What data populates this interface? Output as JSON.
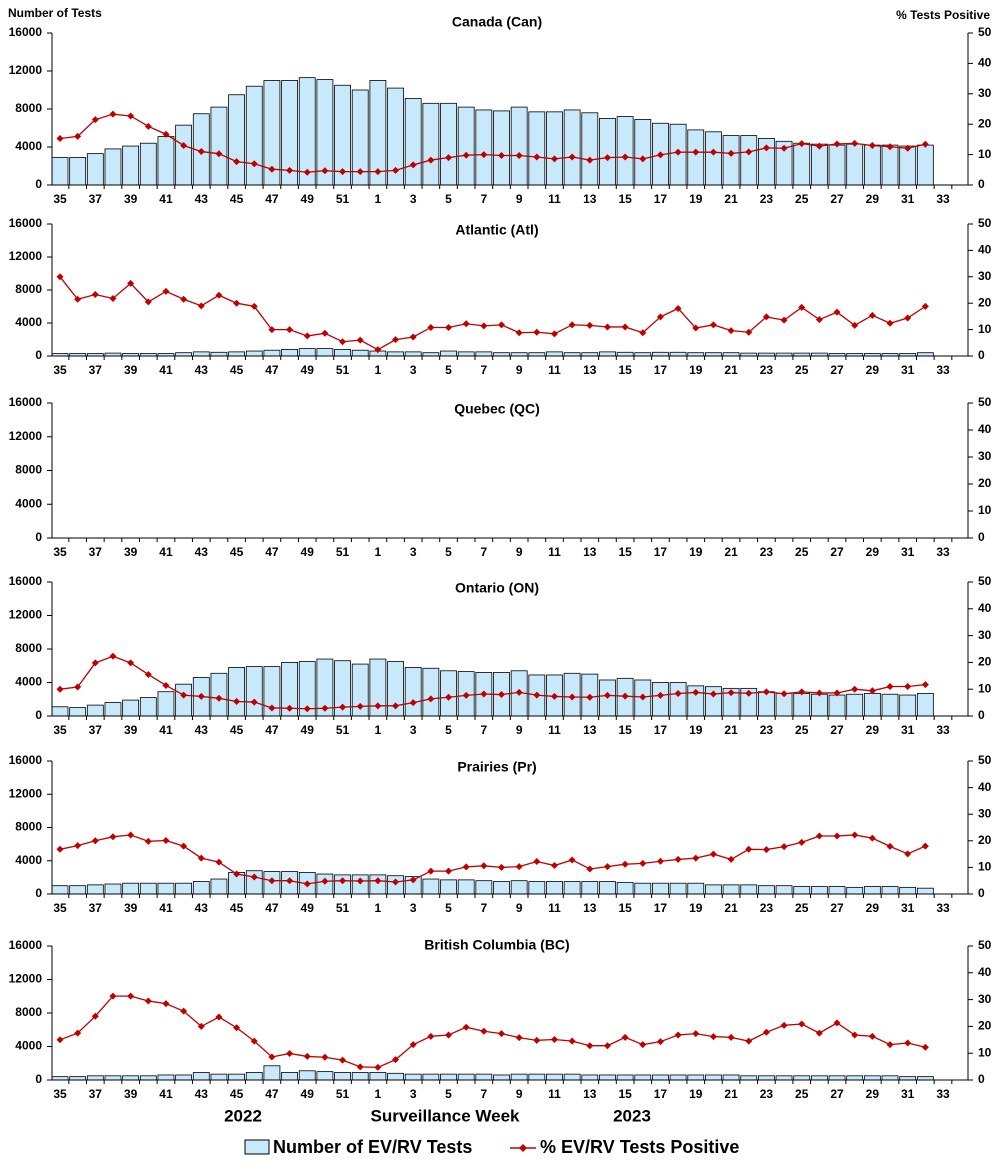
{
  "labels": {
    "y_label": "Number of Tests",
    "y2_label": "% Tests Positive",
    "x_label": "Surveillance Week",
    "years": [
      "2022",
      "2023"
    ]
  },
  "chart_data": [
    {
      "type": "bar",
      "title": "Canada (Can)",
      "categories": [
        35,
        null,
        37,
        null,
        39,
        null,
        41,
        null,
        43,
        null,
        45,
        null,
        47,
        null,
        49,
        null,
        51,
        null,
        1,
        null,
        3,
        null,
        5,
        null,
        7,
        null,
        9,
        null,
        11,
        null,
        13,
        null,
        15,
        null,
        17,
        null,
        19,
        null,
        21,
        null,
        23,
        null,
        25,
        null,
        27,
        null,
        29,
        null,
        31,
        null,
        33
      ],
      "ylim": [
        0,
        16000
      ],
      "yticks": [
        0,
        4000,
        8000,
        12000,
        16000
      ],
      "y2lim": [
        0,
        50
      ],
      "y2ticks": [
        0,
        10,
        20,
        30,
        40,
        50
      ],
      "series": [
        {
          "name": "Number of EV/RV Tests",
          "color": "#c8e9fb",
          "values": [
            2900,
            2900,
            3300,
            3800,
            4100,
            4400,
            5100,
            6300,
            7500,
            8200,
            9500,
            10400,
            11000,
            11000,
            11300,
            11100,
            10500,
            10000,
            11000,
            10200,
            9100,
            8600,
            8600,
            8200,
            7900,
            7800,
            8200,
            7700,
            7700,
            7900,
            7600,
            7000,
            7200,
            6900,
            6500,
            6400,
            5800,
            5600,
            5200,
            5200,
            4900,
            4600,
            4400,
            4300,
            4200,
            4300,
            4200,
            4200,
            4100,
            4200,
            null
          ]
        },
        {
          "name": "% EV/RV Tests Positive",
          "type": "line",
          "axis": "y2",
          "color": "#c00000",
          "values": [
            15.3,
            16,
            21.5,
            23.3,
            22.7,
            19.3,
            16.7,
            13,
            11,
            10.3,
            7.7,
            7,
            5.2,
            4.8,
            4.2,
            4.7,
            4.4,
            4.4,
            4.4,
            4.8,
            6.6,
            8.2,
            9,
            9.8,
            10,
            9.7,
            9.7,
            9.2,
            8.6,
            9.2,
            8.2,
            9,
            9.2,
            8.6,
            9.9,
            10.8,
            10.8,
            10.8,
            10.4,
            10.9,
            12.2,
            12.1,
            13.6,
            12.8,
            13.5,
            13.7,
            13,
            12.6,
            12.1,
            13.4,
            null
          ]
        }
      ]
    },
    {
      "type": "bar",
      "title": "Atlantic (Atl)",
      "categories": [
        35,
        null,
        37,
        null,
        39,
        null,
        41,
        null,
        43,
        null,
        45,
        null,
        47,
        null,
        49,
        null,
        51,
        null,
        1,
        null,
        3,
        null,
        5,
        null,
        7,
        null,
        9,
        null,
        11,
        null,
        13,
        null,
        15,
        null,
        17,
        null,
        19,
        null,
        21,
        null,
        23,
        null,
        25,
        null,
        27,
        null,
        29,
        null,
        31,
        null,
        33
      ],
      "ylim": [
        0,
        16000
      ],
      "yticks": [
        0,
        4000,
        8000,
        12000,
        16000
      ],
      "y2lim": [
        0,
        50
      ],
      "y2ticks": [
        0,
        10,
        20,
        30,
        40,
        50
      ],
      "series": [
        {
          "color": "#c8e9fb",
          "values": [
            300,
            300,
            300,
            350,
            300,
            300,
            300,
            400,
            500,
            450,
            500,
            600,
            700,
            800,
            900,
            900,
            800,
            700,
            600,
            500,
            500,
            400,
            600,
            500,
            500,
            400,
            400,
            400,
            500,
            400,
            400,
            500,
            450,
            400,
            450,
            450,
            400,
            400,
            400,
            350,
            350,
            350,
            350,
            350,
            300,
            300,
            300,
            300,
            300,
            400,
            null
          ]
        },
        {
          "type": "line",
          "axis": "y2",
          "color": "#c00000",
          "values": [
            30,
            21.5,
            23.3,
            21.8,
            27.5,
            20.5,
            24.5,
            21.5,
            19,
            23,
            20,
            18.8,
            10,
            10,
            7.6,
            8.6,
            5.4,
            6,
            2.4,
            6.2,
            7.2,
            10.8,
            10.8,
            12.2,
            11.4,
            11.8,
            8.8,
            9,
            8.4,
            11.8,
            11.6,
            11,
            11,
            8.8,
            14.8,
            18,
            10.6,
            11.8,
            9.6,
            9,
            14.8,
            13.6,
            18.4,
            13.8,
            16.6,
            11.6,
            15.4,
            12.4,
            14.4,
            18.8,
            null
          ]
        }
      ]
    },
    {
      "type": "bar",
      "title": "Quebec (QC)",
      "categories": [
        35,
        null,
        37,
        null,
        39,
        null,
        41,
        null,
        43,
        null,
        45,
        null,
        47,
        null,
        49,
        null,
        51,
        null,
        1,
        null,
        3,
        null,
        5,
        null,
        7,
        null,
        9,
        null,
        11,
        null,
        13,
        null,
        15,
        null,
        17,
        null,
        19,
        null,
        21,
        null,
        23,
        null,
        25,
        null,
        27,
        null,
        29,
        null,
        31,
        null,
        33
      ],
      "ylim": [
        0,
        16000
      ],
      "yticks": [
        0,
        4000,
        8000,
        12000,
        16000
      ],
      "y2lim": [
        0,
        50
      ],
      "y2ticks": [
        0,
        10,
        20,
        30,
        40,
        50
      ],
      "series": [
        {
          "color": "#c8e9fb",
          "values": [
            null,
            null,
            null,
            null,
            null,
            null,
            null,
            null,
            null,
            null,
            null,
            null,
            null,
            null,
            null,
            null,
            null,
            null,
            null,
            null,
            null,
            null,
            null,
            null,
            null,
            null,
            null,
            null,
            null,
            null,
            null,
            null,
            null,
            null,
            null,
            null,
            null,
            null,
            null,
            null,
            null,
            null,
            null,
            null,
            null,
            null,
            null,
            null,
            null,
            null,
            null
          ]
        },
        {
          "type": "line",
          "axis": "y2",
          "color": "#c00000",
          "values": [
            null,
            null,
            null,
            null,
            null,
            null,
            null,
            null,
            null,
            null,
            null,
            null,
            null,
            null,
            null,
            null,
            null,
            null,
            null,
            null,
            null,
            null,
            null,
            null,
            null,
            null,
            null,
            null,
            null,
            null,
            null,
            null,
            null,
            null,
            null,
            null,
            null,
            null,
            null,
            null,
            null,
            null,
            null,
            null,
            null,
            null,
            null,
            null,
            null,
            null,
            null
          ]
        }
      ]
    },
    {
      "type": "bar",
      "title": "Ontario (ON)",
      "categories": [
        35,
        null,
        37,
        null,
        39,
        null,
        41,
        null,
        43,
        null,
        45,
        null,
        47,
        null,
        49,
        null,
        51,
        null,
        1,
        null,
        3,
        null,
        5,
        null,
        7,
        null,
        9,
        null,
        11,
        null,
        13,
        null,
        15,
        null,
        17,
        null,
        19,
        null,
        21,
        null,
        23,
        null,
        25,
        null,
        27,
        null,
        29,
        null,
        31,
        null,
        33
      ],
      "ylim": [
        0,
        16000
      ],
      "yticks": [
        0,
        4000,
        8000,
        12000,
        16000
      ],
      "y2lim": [
        0,
        50
      ],
      "y2ticks": [
        0,
        10,
        20,
        30,
        40,
        50
      ],
      "series": [
        {
          "color": "#c8e9fb",
          "values": [
            1100,
            1000,
            1300,
            1600,
            1900,
            2200,
            2900,
            3800,
            4600,
            5100,
            5800,
            5900,
            5900,
            6400,
            6500,
            6800,
            6600,
            6200,
            6800,
            6500,
            5800,
            5700,
            5400,
            5300,
            5200,
            5200,
            5400,
            4900,
            4900,
            5100,
            5000,
            4300,
            4500,
            4300,
            4000,
            4000,
            3600,
            3500,
            3300,
            3300,
            2900,
            2700,
            2700,
            2600,
            2500,
            2600,
            2700,
            2600,
            2500,
            2700,
            null
          ]
        },
        {
          "type": "line",
          "axis": "y2",
          "color": "#c00000",
          "values": [
            10,
            10.8,
            19.8,
            22.3,
            19.8,
            15.5,
            11.4,
            7.8,
            7.3,
            6.6,
            5.4,
            5.2,
            3,
            2.9,
            2.7,
            2.9,
            3.3,
            3.6,
            3.8,
            3.8,
            5,
            6.4,
            7,
            7.7,
            8.2,
            8,
            8.8,
            7.8,
            7.3,
            7.1,
            7,
            7.7,
            7.4,
            7.1,
            7.7,
            8.4,
            8.8,
            8.2,
            8.7,
            8.5,
            9,
            8.3,
            9,
            8.6,
            8.6,
            10,
            9.4,
            11,
            11,
            11.7,
            null
          ]
        }
      ]
    },
    {
      "type": "bar",
      "title": "Prairies (Pr)",
      "categories": [
        35,
        null,
        37,
        null,
        39,
        null,
        41,
        null,
        43,
        null,
        45,
        null,
        47,
        null,
        49,
        null,
        51,
        null,
        1,
        null,
        3,
        null,
        5,
        null,
        7,
        null,
        9,
        null,
        11,
        null,
        13,
        null,
        15,
        null,
        17,
        null,
        19,
        null,
        21,
        null,
        23,
        null,
        25,
        null,
        27,
        null,
        29,
        null,
        31,
        null,
        33
      ],
      "ylim": [
        0,
        16000
      ],
      "yticks": [
        0,
        4000,
        8000,
        12000,
        16000
      ],
      "y2lim": [
        0,
        50
      ],
      "y2ticks": [
        0,
        10,
        20,
        30,
        40,
        50
      ],
      "series": [
        {
          "color": "#c8e9fb",
          "values": [
            1000,
            1000,
            1100,
            1200,
            1300,
            1300,
            1300,
            1300,
            1500,
            1800,
            2600,
            2800,
            2700,
            2700,
            2600,
            2400,
            2300,
            2300,
            2300,
            2200,
            2100,
            1800,
            1700,
            1700,
            1600,
            1500,
            1600,
            1500,
            1500,
            1500,
            1500,
            1500,
            1400,
            1300,
            1300,
            1300,
            1300,
            1100,
            1100,
            1100,
            1000,
            1000,
            900,
            900,
            900,
            800,
            900,
            900,
            800,
            700,
            null
          ]
        },
        {
          "type": "line",
          "axis": "y2",
          "color": "#c00000",
          "values": [
            16.8,
            18.2,
            20,
            21.5,
            22.2,
            19.8,
            20.1,
            18,
            13.5,
            12,
            7.5,
            6.4,
            5,
            5,
            3.8,
            4.8,
            5,
            4.9,
            5,
            4.5,
            5.3,
            8.6,
            8.6,
            10.2,
            10.6,
            10,
            10.3,
            12.2,
            10.7,
            12.8,
            9.4,
            10.3,
            11.2,
            11.5,
            12.3,
            13,
            13.5,
            15,
            13,
            16.8,
            16.7,
            17.8,
            19.4,
            21.8,
            21.8,
            22.2,
            21,
            17.9,
            15.1,
            18,
            null
          ]
        }
      ]
    },
    {
      "type": "bar",
      "title": "British Columbia (BC)",
      "categories": [
        35,
        null,
        37,
        null,
        39,
        null,
        41,
        null,
        43,
        null,
        45,
        null,
        47,
        null,
        49,
        null,
        51,
        null,
        1,
        null,
        3,
        null,
        5,
        null,
        7,
        null,
        9,
        null,
        11,
        null,
        13,
        null,
        15,
        null,
        17,
        null,
        19,
        null,
        21,
        null,
        23,
        null,
        25,
        null,
        27,
        null,
        29,
        null,
        31,
        null,
        33
      ],
      "ylim": [
        0,
        16000
      ],
      "yticks": [
        0,
        4000,
        8000,
        12000,
        16000
      ],
      "y2lim": [
        0,
        50
      ],
      "y2ticks": [
        0,
        10,
        20,
        30,
        40,
        50
      ],
      "series": [
        {
          "color": "#c8e9fb",
          "values": [
            400,
            400,
            500,
            500,
            500,
            500,
            600,
            600,
            900,
            700,
            700,
            900,
            1700,
            900,
            1100,
            1000,
            900,
            900,
            900,
            800,
            700,
            700,
            700,
            700,
            700,
            600,
            700,
            700,
            700,
            700,
            600,
            600,
            600,
            600,
            600,
            600,
            600,
            600,
            600,
            500,
            500,
            500,
            500,
            500,
            500,
            500,
            500,
            500,
            400,
            400,
            null
          ]
        },
        {
          "type": "line",
          "axis": "y2",
          "color": "#c00000",
          "values": [
            15,
            17.5,
            23.8,
            31.3,
            31.3,
            29.5,
            28.5,
            25.7,
            20,
            23.5,
            19.5,
            14.5,
            8.6,
            9.9,
            8.8,
            8.5,
            7.4,
            4.9,
            4.7,
            7.6,
            13.2,
            16.3,
            16.8,
            19.7,
            18.2,
            17.3,
            15.8,
            14.8,
            15.1,
            14.5,
            12.8,
            12.8,
            15.9,
            13.2,
            14.3,
            16.8,
            17.3,
            16.2,
            15.9,
            14.5,
            17.8,
            20.4,
            20.9,
            17.5,
            21.3,
            16.8,
            16.3,
            13.2,
            13.8,
            12.2,
            null
          ]
        }
      ]
    }
  ]
}
